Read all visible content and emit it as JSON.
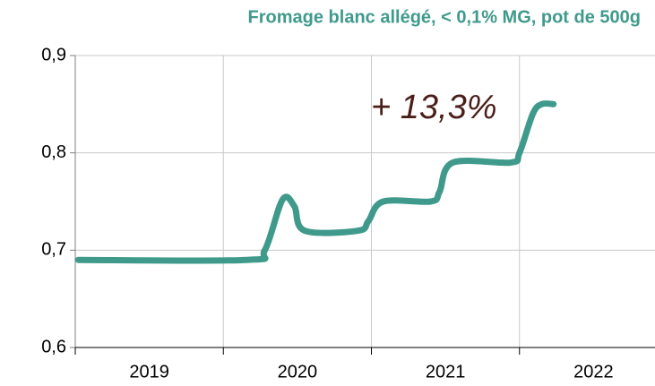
{
  "chart_data": {
    "type": "line",
    "title": "Fromage blanc allégé, < 0,1% MG, pot de 500g",
    "annotation": "+ 13,3%",
    "categories": [
      "2019",
      "2020",
      "2021",
      "2022"
    ],
    "xlim": [
      2019,
      2023
    ],
    "series": [
      {
        "name": "Fromage blanc allégé",
        "color": "#3f9a8c",
        "x": [
          2019.02,
          2020.16,
          2020.28,
          2020.4,
          2020.48,
          2020.55,
          2020.91,
          2020.98,
          2021.08,
          2021.4,
          2021.46,
          2021.55,
          2021.94,
          2022.0,
          2022.09,
          2022.15,
          2022.23
        ],
        "values": [
          0.69,
          0.69,
          0.7,
          0.752,
          0.745,
          0.72,
          0.72,
          0.73,
          0.75,
          0.75,
          0.76,
          0.79,
          0.79,
          0.8,
          0.84,
          0.85,
          0.85
        ]
      }
    ],
    "ylim": [
      0.6,
      0.9
    ],
    "yticks": [
      {
        "value": 0.6,
        "label": "0,6"
      },
      {
        "value": 0.7,
        "label": "0,7"
      },
      {
        "value": 0.8,
        "label": "0,8"
      },
      {
        "value": 0.9,
        "label": "0,9"
      }
    ],
    "grid": true
  }
}
